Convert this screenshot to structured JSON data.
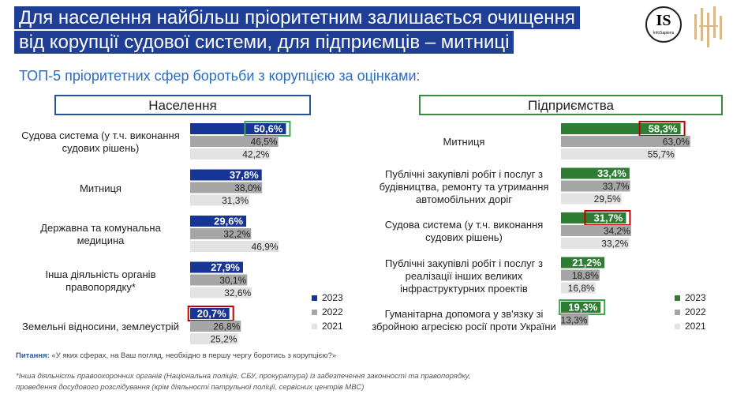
{
  "title_lines": [
    "Для населення найбільш пріоритетним залишається очищення",
    "від корупції судової системи, для підприємців – митниці"
  ],
  "subtitle": "ТОП-5 пріоритетних сфер боротьби з корупцією за оцінками:",
  "logo": {
    "initials": "IS",
    "name": "InfoSapiens"
  },
  "colors": {
    "y2023_population": "#173594",
    "y2023_business": "#2e7d32",
    "y2022": "#a6a6a6",
    "y2021": "#e3e3e3",
    "highlight_red": "#c00000",
    "highlight_green": "#3aa553"
  },
  "legend": {
    "years": [
      "2023",
      "2022",
      "2021"
    ]
  },
  "chart_data": [
    {
      "type": "bar",
      "title": "Населення",
      "orientation": "horizontal",
      "series_names": [
        "2023",
        "2022",
        "2021"
      ],
      "categories": [
        "Судова система (у т.ч. виконання судових рішень)",
        "Митниця",
        "Державна та комунальна медицина",
        "Інша діяльність органів правопорядку*",
        "Земельні відносини, землеустрій"
      ],
      "series": [
        {
          "name": "2023",
          "values": [
            50.6,
            37.8,
            29.6,
            27.9,
            20.7
          ]
        },
        {
          "name": "2022",
          "values": [
            46.5,
            38.0,
            32.2,
            30.1,
            26.8
          ]
        },
        {
          "name": "2021",
          "values": [
            42.2,
            31.3,
            46.9,
            32.6,
            25.2
          ]
        }
      ],
      "labels": [
        [
          "50,6%",
          "46,5%",
          "42,2%"
        ],
        [
          "37,8%",
          "38,0%",
          "31,3%"
        ],
        [
          "29,6%",
          "32,2%",
          "46,9%"
        ],
        [
          "27,9%",
          "30,1%",
          "32,6%"
        ],
        [
          "20,7%",
          "26,8%",
          "25,2%"
        ]
      ],
      "highlights": [
        {
          "category": 0,
          "color": "green"
        },
        {
          "category": 4,
          "color": "red"
        }
      ]
    },
    {
      "type": "bar",
      "title": "Підприємства",
      "orientation": "horizontal",
      "series_names": [
        "2023",
        "2022",
        "2021"
      ],
      "categories": [
        "Митниця",
        "Публічні закупівлі робіт і послуг з будівництва, ремонту та утримання автомобільних доріг",
        "Судова система (у т.ч. виконання судових рішень)",
        "Публічні закупівлі робіт і послуг з реалізації інших великих інфраструктурних проектів",
        "Гуманітарна допомога у зв'язку зі збройною агресією росії проти України"
      ],
      "series": [
        {
          "name": "2023",
          "values": [
            58.3,
            33.4,
            31.7,
            21.2,
            19.3
          ]
        },
        {
          "name": "2022",
          "values": [
            63.0,
            33.7,
            34.2,
            18.8,
            13.3
          ]
        },
        {
          "name": "2021",
          "values": [
            55.7,
            29.5,
            33.2,
            16.8,
            null
          ]
        }
      ],
      "labels": [
        [
          "58,3%",
          "63,0%",
          "55,7%"
        ],
        [
          "33,4%",
          "33,7%",
          "29,5%"
        ],
        [
          "31,7%",
          "34,2%",
          "33,2%"
        ],
        [
          "21,2%",
          "18,8%",
          "16,8%"
        ],
        [
          "19,3%",
          "13,3%",
          ""
        ]
      ],
      "highlights": [
        {
          "category": 0,
          "color": "red"
        },
        {
          "category": 2,
          "color": "red"
        },
        {
          "category": 4,
          "color": "green"
        }
      ]
    }
  ],
  "question_label": "Питання:",
  "question_text": " «У яких сферах, на Ваш погляд, необхідно в першу чергу боротись з корупцією?»",
  "footnote": "*Інша діяльність правоохоронних органів (Національна поліція, СБУ, прокуратура) із забезпечення законності та правопорядку, проведення досудового розслідування (крім діяльності патрульної поліції, сервісних центрів МВС)"
}
